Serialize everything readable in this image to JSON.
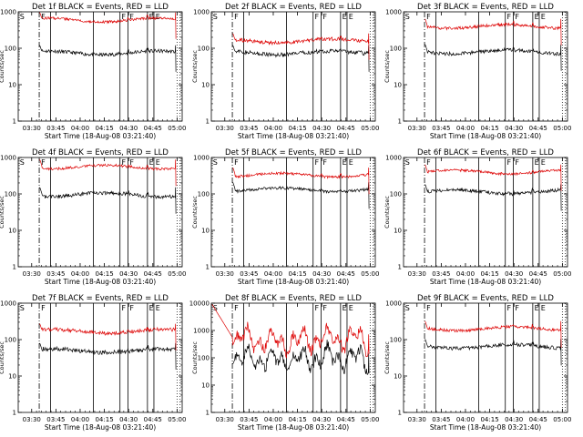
{
  "figure": {
    "time_ticks": [
      "03:30",
      "03:45",
      "04:00",
      "04:15",
      "04:30",
      "04:45",
      "05:00"
    ],
    "y_ticks": [
      "1",
      "10",
      "100",
      "1000"
    ],
    "y_ticks_wide": [
      "1",
      "10",
      "100",
      "1000",
      "10000"
    ],
    "ylabel": "Counts/sec",
    "xlabel": "Start Time (18-Aug-08 03:21:40)",
    "interval_labels": [
      "S",
      "F",
      "F",
      "F",
      "E",
      "E"
    ]
  },
  "chart_data": [
    {
      "type": "line",
      "title": "Det 1f BLACK = Events, RED = LLD",
      "xlabel": "Start Time (18-Aug-08 03:21:40)",
      "ylabel": "Counts/sec",
      "y_scale": "log",
      "ylim": [
        1,
        1000
      ],
      "series": [
        {
          "name": "Events",
          "color": "#000000",
          "level": 75,
          "noise": 0.05
        },
        {
          "name": "LLD",
          "color": "#dd0000",
          "level": 600,
          "noise": 0.035
        }
      ]
    },
    {
      "type": "line",
      "title": "Det 2f BLACK = Events, RED = LLD",
      "xlabel": "Start Time (18-Aug-08 03:21:40)",
      "ylabel": "Counts/sec",
      "y_scale": "log",
      "ylim": [
        1,
        1000
      ],
      "series": [
        {
          "name": "Events",
          "color": "#000000",
          "level": 75,
          "noise": 0.06
        },
        {
          "name": "LLD",
          "color": "#dd0000",
          "level": 160,
          "noise": 0.05
        }
      ]
    },
    {
      "type": "line",
      "title": "Det 3f BLACK = Events, RED = LLD",
      "xlabel": "Start Time (18-Aug-08 03:21:40)",
      "ylabel": "Counts/sec",
      "y_scale": "log",
      "ylim": [
        1,
        1000
      ],
      "series": [
        {
          "name": "Events",
          "color": "#000000",
          "level": 80,
          "noise": 0.05
        },
        {
          "name": "LLD",
          "color": "#dd0000",
          "level": 400,
          "noise": 0.04
        }
      ]
    },
    {
      "type": "line",
      "title": "Det 4f BLACK = Events, RED = LLD",
      "xlabel": "Start Time (18-Aug-08 03:21:40)",
      "ylabel": "Counts/sec",
      "y_scale": "log",
      "ylim": [
        1,
        1000
      ],
      "series": [
        {
          "name": "Events",
          "color": "#000000",
          "level": 95,
          "noise": 0.05
        },
        {
          "name": "LLD",
          "color": "#dd0000",
          "level": 550,
          "noise": 0.035
        }
      ]
    },
    {
      "type": "line",
      "title": "Det 5f BLACK = Events, RED = LLD",
      "xlabel": "Start Time (18-Aug-08 03:21:40)",
      "ylabel": "Counts/sec",
      "y_scale": "log",
      "ylim": [
        1,
        1000
      ],
      "series": [
        {
          "name": "Events",
          "color": "#000000",
          "level": 130,
          "noise": 0.04
        },
        {
          "name": "LLD",
          "color": "#dd0000",
          "level": 330,
          "noise": 0.035
        }
      ]
    },
    {
      "type": "line",
      "title": "Det 6f BLACK = Events, RED = LLD",
      "xlabel": "Start Time (18-Aug-08 03:21:40)",
      "ylabel": "Counts/sec",
      "y_scale": "log",
      "ylim": [
        1,
        1000
      ],
      "series": [
        {
          "name": "Events",
          "color": "#000000",
          "level": 115,
          "noise": 0.05
        },
        {
          "name": "LLD",
          "color": "#dd0000",
          "level": 400,
          "noise": 0.035
        }
      ]
    },
    {
      "type": "line",
      "title": "Det 7f BLACK = Events, RED = LLD",
      "xlabel": "Start Time (18-Aug-08 03:21:40)",
      "ylabel": "Counts/sec",
      "y_scale": "log",
      "ylim": [
        1,
        1000
      ],
      "series": [
        {
          "name": "Events",
          "color": "#000000",
          "level": 50,
          "noise": 0.06
        },
        {
          "name": "LLD",
          "color": "#dd0000",
          "level": 170,
          "noise": 0.05
        }
      ]
    },
    {
      "type": "line",
      "title": "Det 8f BLACK = Events, RED = LLD",
      "xlabel": "Start Time (18-Aug-08 03:21:40)",
      "ylabel": "Counts/sec",
      "y_scale": "log",
      "ylim": [
        1,
        10000
      ],
      "series": [
        {
          "name": "Events",
          "color": "#000000",
          "level": 90,
          "noise": 0.2
        },
        {
          "name": "LLD",
          "color": "#dd0000",
          "level": 450,
          "noise": 0.2
        }
      ]
    },
    {
      "type": "line",
      "title": "Det 9f BLACK = Events, RED = LLD",
      "xlabel": "Start Time (18-Aug-08 03:21:40)",
      "ylabel": "Counts/sec",
      "y_scale": "log",
      "ylim": [
        1,
        1000
      ],
      "series": [
        {
          "name": "Events",
          "color": "#000000",
          "level": 65,
          "noise": 0.05
        },
        {
          "name": "LLD",
          "color": "#dd0000",
          "level": 200,
          "noise": 0.04
        }
      ]
    }
  ]
}
